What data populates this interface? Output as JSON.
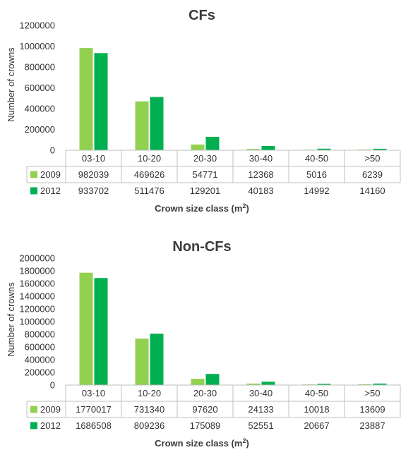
{
  "colors": {
    "s2009": "#92d050",
    "s2012": "#00b050"
  },
  "charts": [
    {
      "type": "bar",
      "title": "CFs",
      "ylabel": "Number of crowns",
      "xlabel_main": "Crown size class (m",
      "xlabel_sup": "2",
      "xlabel_close": ")",
      "ylim": [
        0,
        1200000
      ],
      "yticks": [
        "0",
        "200000",
        "400000",
        "600000",
        "800000",
        "1000000",
        "1200000"
      ],
      "categories": [
        "03-10",
        "10-20",
        "20-30",
        "30-40",
        "40-50",
        ">50"
      ],
      "series": [
        {
          "name": "2009",
          "values": [
            982039,
            469626,
            54771,
            12368,
            5016,
            6239
          ],
          "labels": [
            "982039",
            "469626",
            "54771",
            "12368",
            "5016",
            "6239"
          ]
        },
        {
          "name": "2012",
          "values": [
            933702,
            511476,
            129201,
            40183,
            14992,
            14160
          ],
          "labels": [
            "933702",
            "511476",
            "129201",
            "40183",
            "14992",
            "14160"
          ]
        }
      ]
    },
    {
      "type": "bar",
      "title": "Non-CFs",
      "ylabel": "Number of crowns",
      "xlabel_main": "Crown size class (m",
      "xlabel_sup": "2",
      "xlabel_close": ")",
      "ylim": [
        0,
        2000000
      ],
      "yticks": [
        "0",
        "200000",
        "400000",
        "600000",
        "800000",
        "1000000",
        "1200000",
        "1400000",
        "1600000",
        "1800000",
        "2000000"
      ],
      "categories": [
        "03-10",
        "10-20",
        "20-30",
        "30-40",
        "40-50",
        ">50"
      ],
      "series": [
        {
          "name": "2009",
          "values": [
            1770017,
            731340,
            97620,
            24133,
            10018,
            13609
          ],
          "labels": [
            "1770017",
            "731340",
            "97620",
            "24133",
            "10018",
            "13609"
          ]
        },
        {
          "name": "2012",
          "values": [
            1686508,
            809236,
            175089,
            52551,
            20667,
            23887
          ],
          "labels": [
            "1686508",
            "809236",
            "175089",
            "52551",
            "20667",
            "23887"
          ]
        }
      ]
    }
  ]
}
